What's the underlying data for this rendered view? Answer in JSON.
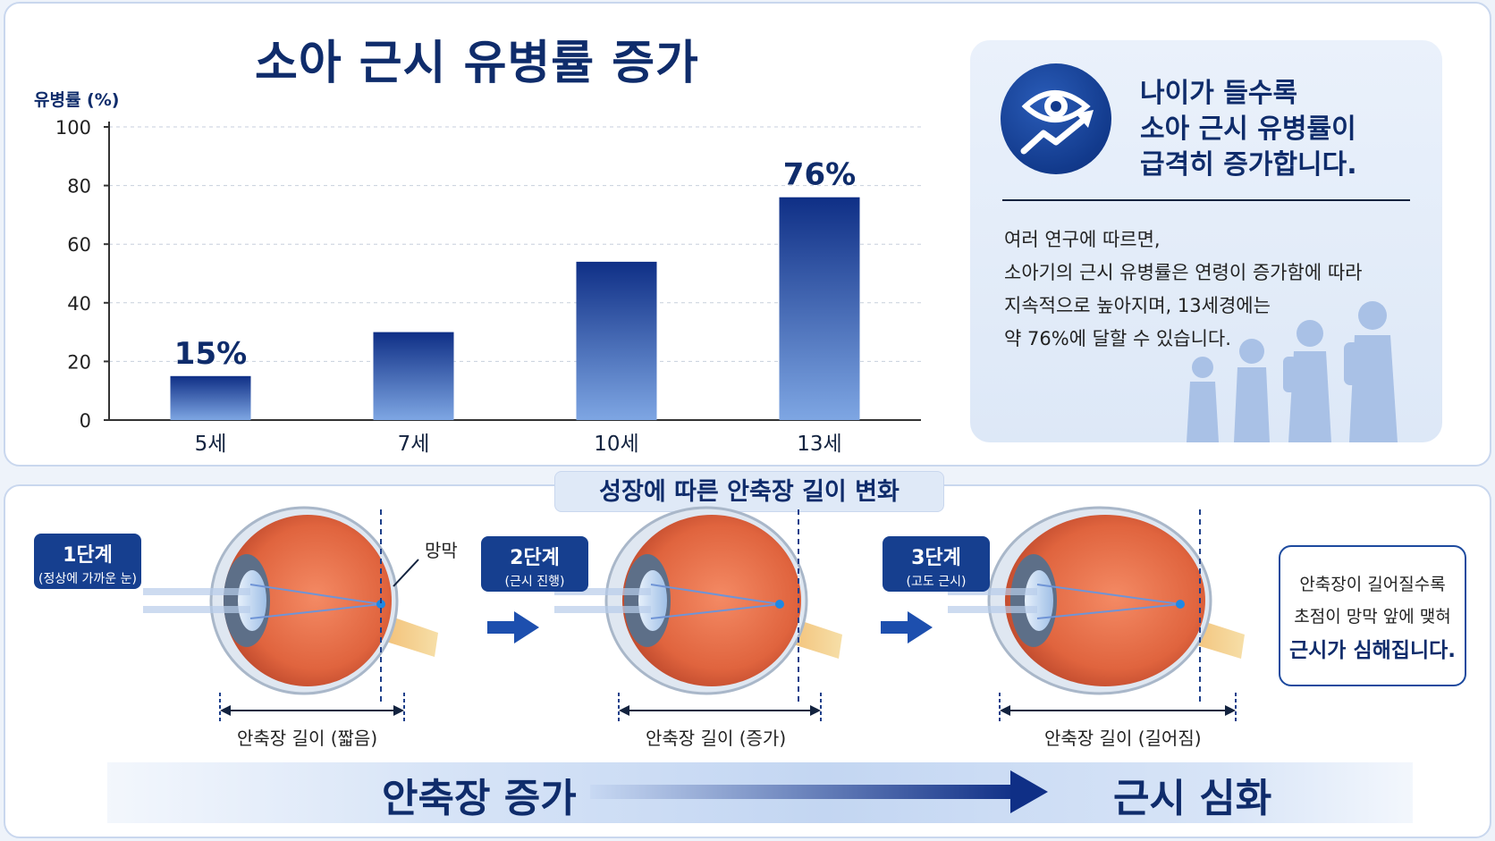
{
  "chart": {
    "title": "소아 근시 유병률 증가"
  },
  "chart_data": {
    "type": "bar",
    "categories": [
      "5세",
      "7세",
      "10세",
      "13세"
    ],
    "values": [
      15,
      30,
      54,
      76
    ],
    "data_labels": [
      "15%",
      "",
      "",
      "76%"
    ],
    "ylabel": "유병률 (%)",
    "yticks": [
      "0",
      "20",
      "40",
      "60",
      "80",
      "100"
    ],
    "ylim": [
      0,
      100
    ],
    "grid": true,
    "colors": {
      "bar_top": "#0f2f86",
      "bar_bottom": "#7ea6e3"
    }
  },
  "info": {
    "icon": "eye-trend-up-icon",
    "heading_lines": [
      "나이가 들수록",
      "소아 근시 유병률이",
      "급격히 증가합니다."
    ],
    "body_lines": [
      "여러 연구에 따르면,",
      "소아기의 근시 유병률은 연령이 증가함에 따라",
      "지속적으로 높아지며, 13세경에는",
      "약 76%에 달할 수 있습니다."
    ]
  },
  "growth": {
    "title": "성장에 따른 안축장 길이 변화",
    "retina_label": "망막",
    "stages": [
      {
        "title": "1단계",
        "subtitle": "(정상에 가까운 눈)",
        "axial_label": "안축장 길이 (짧음)"
      },
      {
        "title": "2단계",
        "subtitle": "(근시 진행)",
        "axial_label": "안축장 길이 (증가)"
      },
      {
        "title": "3단계",
        "subtitle": "(고도 근시)",
        "axial_label": "안축장 길이 (길어짐)"
      }
    ],
    "note_lines": [
      "안축장이 길어질수록",
      "초점이 망막 앞에 맺혀",
      "근시가 심해집니다."
    ]
  },
  "band": {
    "left": "안축장 증가",
    "right": "근시 심화"
  }
}
